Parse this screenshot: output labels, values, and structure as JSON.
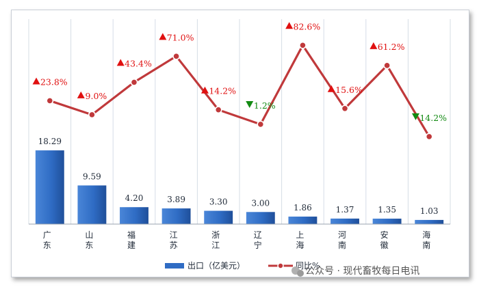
{
  "chart_data": {
    "type": "bar",
    "categories": [
      "广东",
      "山东",
      "福建",
      "江苏",
      "浙江",
      "辽宁",
      "上海",
      "河南",
      "安徽",
      "海南"
    ],
    "series": [
      {
        "name": "出口（亿美元）",
        "type": "bar",
        "values": [
          18.29,
          9.59,
          4.2,
          3.89,
          3.3,
          3.0,
          1.86,
          1.37,
          1.35,
          1.03
        ],
        "labels": [
          "18.29",
          "9.59",
          "4.20",
          "3.89",
          "3.30",
          "3.00",
          "1.86",
          "1.37",
          "1.35",
          "1.03"
        ],
        "color": "#2f6cc4"
      },
      {
        "name": "同比%",
        "type": "line",
        "values": [
          23.8,
          9.0,
          43.4,
          71.0,
          14.2,
          -1.2,
          82.6,
          15.6,
          61.2,
          -14.2
        ],
        "labels": [
          "23.8%",
          "9.0%",
          "43.4%",
          "71.0%",
          "14.2%",
          "1.2%",
          "82.6%",
          "15.6%",
          "61.2%",
          "14.2%"
        ],
        "color": "#c0393b"
      }
    ],
    "colors": {
      "up": "#e01010",
      "down": "#138a13",
      "grid": "#d5dce6"
    },
    "grid": "vertical",
    "legend_position": "bottom"
  },
  "watermark": {
    "text": "公众号 · 现代畜牧每日电讯",
    "icon": "wechat-icon"
  }
}
